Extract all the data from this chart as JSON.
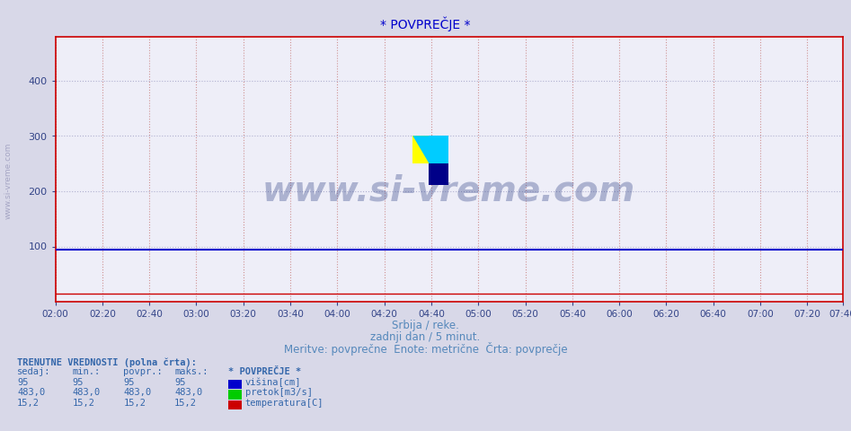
{
  "title": "* POVPREČJE *",
  "title_color": "#0000cc",
  "title_fontsize": 10,
  "bg_color": "#d8d8e8",
  "plot_bg_color": "#eeeef8",
  "xmin": 0,
  "xmax": 335,
  "ymin": 0,
  "ymax": 480,
  "yticks": [
    100,
    200,
    300,
    400
  ],
  "xtick_labels": [
    "02:00",
    "02:20",
    "02:40",
    "03:00",
    "03:20",
    "03:40",
    "04:00",
    "04:20",
    "04:40",
    "05:00",
    "05:20",
    "05:40",
    "06:00",
    "06:20",
    "06:40",
    "07:00",
    "07:20",
    "07:40"
  ],
  "xtick_positions": [
    0,
    20,
    40,
    60,
    80,
    100,
    120,
    140,
    160,
    180,
    200,
    220,
    240,
    260,
    280,
    300,
    320,
    335
  ],
  "visina_value": 95,
  "pretok_value": 483.0,
  "temperatura_value": 15.2,
  "visina_color": "#0000cc",
  "pretok_color": "#00cc00",
  "temperatura_color": "#cc0000",
  "vgrid_color": "#cc8888",
  "hgrid_color": "#aaaacc",
  "spine_color": "#cc0000",
  "tick_color": "#334488",
  "xlabel_text1": "Srbija / reke.",
  "xlabel_text2": "zadnji dan / 5 minut.",
  "xlabel_text3": "Meritve: povprečne  Enote: metrične  Črta: povprečje",
  "xlabel_color": "#5588bb",
  "sidebar_text": "www.si-vreme.com",
  "sidebar_color": "#9999bb",
  "table_header": "TRENUTNE VREDNOSTI (polna črta):",
  "table_col1": "sedaj:",
  "table_col2": "min.:",
  "table_col3": "povpr.:",
  "table_col4": "maks.:",
  "table_legend_title": "* POVPREČJE *",
  "table_color": "#3366aa",
  "visina_label": "višina[cm]",
  "pretok_label": "pretok[m3/s]",
  "temperatura_label": "temperatura[C]",
  "watermark": "www.si-vreme.com",
  "watermark_color": "#334488",
  "logo_yellow": "#ffff00",
  "logo_cyan": "#00ccff",
  "logo_blue": "#000088"
}
